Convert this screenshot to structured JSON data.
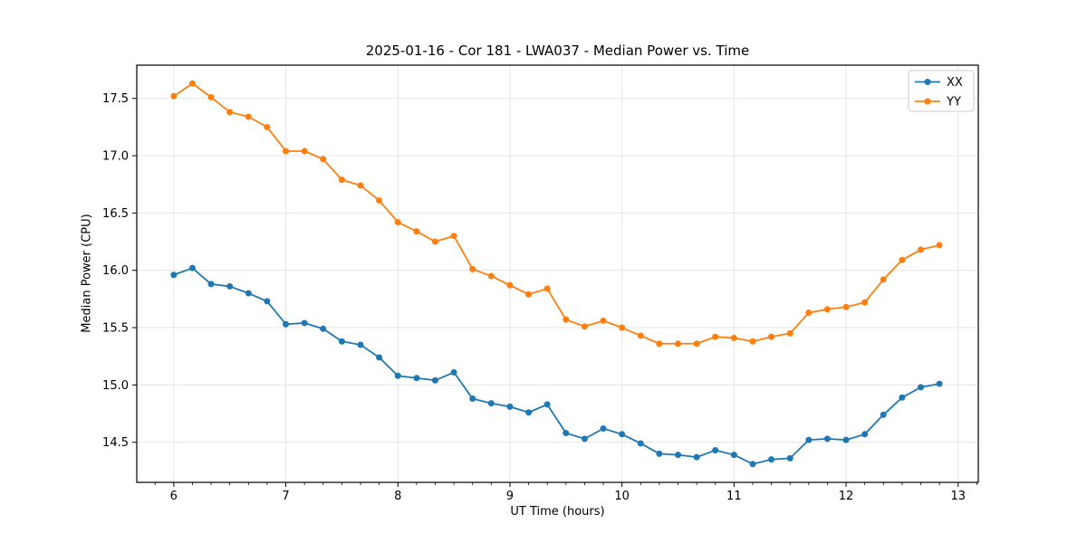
{
  "chart_data": {
    "type": "line",
    "title": "2025-01-16 - Cor 181 - LWA037 - Median Power vs. Time",
    "xlabel": "UT Time (hours)",
    "ylabel": "Median Power (CPU)",
    "xlim": [
      5.67,
      13.18
    ],
    "ylim": [
      14.15,
      17.79
    ],
    "x_ticks": [
      6,
      7,
      8,
      9,
      10,
      11,
      12,
      13
    ],
    "y_ticks": [
      14.5,
      15.0,
      15.5,
      16.0,
      16.5,
      17.0,
      17.5
    ],
    "x_minor_tick_interval": 0.16667,
    "grid": true,
    "legend_position": "upper right",
    "x": [
      6.0,
      6.167,
      6.333,
      6.5,
      6.667,
      6.833,
      7.0,
      7.167,
      7.333,
      7.5,
      7.667,
      7.833,
      8.0,
      8.167,
      8.333,
      8.5,
      8.667,
      8.833,
      9.0,
      9.167,
      9.333,
      9.5,
      9.667,
      9.833,
      10.0,
      10.167,
      10.333,
      10.5,
      10.667,
      10.833,
      11.0,
      11.167,
      11.333,
      11.5,
      11.667,
      11.833,
      12.0,
      12.167,
      12.333,
      12.5,
      12.667,
      12.833
    ],
    "series": [
      {
        "name": "XX",
        "color": "#1f77b4",
        "values": [
          15.96,
          16.02,
          15.88,
          15.86,
          15.8,
          15.73,
          15.53,
          15.54,
          15.49,
          15.38,
          15.35,
          15.24,
          15.08,
          15.06,
          15.04,
          15.11,
          14.88,
          14.84,
          14.81,
          14.76,
          14.83,
          14.58,
          14.53,
          14.62,
          14.57,
          14.49,
          14.4,
          14.39,
          14.37,
          14.43,
          14.39,
          14.31,
          14.35,
          14.36,
          14.52,
          14.53,
          14.52,
          14.57,
          14.74,
          14.89,
          14.98,
          15.01
        ]
      },
      {
        "name": "YY",
        "color": "#ff7f0e",
        "values": [
          17.52,
          17.63,
          17.51,
          17.38,
          17.34,
          17.25,
          17.04,
          17.04,
          16.97,
          16.79,
          16.74,
          16.61,
          16.42,
          16.34,
          16.25,
          16.3,
          16.01,
          15.95,
          15.87,
          15.79,
          15.84,
          15.57,
          15.51,
          15.56,
          15.5,
          15.43,
          15.36,
          15.36,
          15.36,
          15.42,
          15.41,
          15.38,
          15.42,
          15.45,
          15.63,
          15.66,
          15.68,
          15.72,
          15.92,
          16.09,
          16.18,
          16.22
        ]
      }
    ],
    "colors": {
      "grid": "#e5e5e5",
      "spine": "#000000",
      "legend_border": "#cccccc",
      "background": "#ffffff"
    }
  }
}
